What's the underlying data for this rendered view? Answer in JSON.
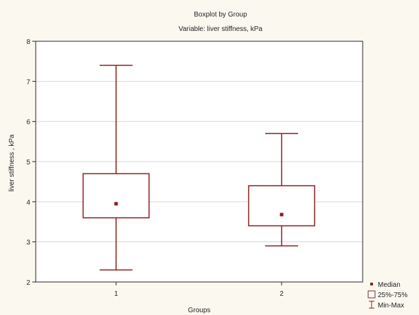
{
  "chart_data": {
    "type": "boxplot",
    "title": "Boxplot by Group",
    "subtitle": "Variable: liver stiffness, kPa",
    "xlabel": "Groups",
    "ylabel": "liver stiffness , kPa",
    "ylim": [
      2,
      8
    ],
    "yticks": [
      "2",
      "3",
      "4",
      "5",
      "6",
      "7",
      "8"
    ],
    "grid": true,
    "legend_position": "bottom-right",
    "colors": {
      "box": "#8b1a1a",
      "grid": "#d6d6d6",
      "axis": "#222222",
      "background": "#fbf8f0",
      "plot_background": "#ffffff"
    },
    "categories": [
      "1",
      "2"
    ],
    "series": [
      {
        "group": "1",
        "min": 2.3,
        "q1": 3.6,
        "median": 3.95,
        "q3": 4.7,
        "max": 7.4
      },
      {
        "group": "2",
        "min": 2.9,
        "q1": 3.4,
        "median": 3.68,
        "q3": 4.4,
        "max": 5.7
      }
    ],
    "legend": [
      {
        "label": "Median",
        "type": "median"
      },
      {
        "label": "25%-75%",
        "type": "box"
      },
      {
        "label": "Min-Max",
        "type": "whisker"
      }
    ]
  }
}
